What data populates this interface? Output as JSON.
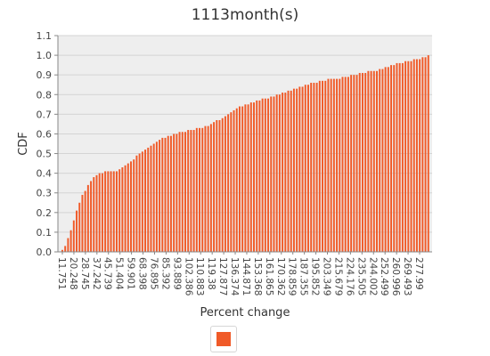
{
  "chart_data": {
    "type": "bar",
    "title": "1113month(s)",
    "xlabel": "Percent change",
    "ylabel": "CDF",
    "ylim": [
      0,
      1.1
    ],
    "yticks": [
      "0.0",
      "0.1",
      "0.2",
      "0.3",
      "0.4",
      "0.5",
      "0.6",
      "0.7",
      "0.8",
      "0.9",
      "1.0",
      "1.1"
    ],
    "grid": true,
    "legend": "bottom-center",
    "bar_color": "#f05a28",
    "plot_background": "#eeeeee",
    "tick_labels": [
      "11.751",
      "20.248",
      "28.745",
      "37.242",
      "45.739",
      "51.404",
      "59.901",
      "68.398",
      "76.895",
      "85.392",
      "93.889",
      "102.386",
      "110.883",
      "119.38",
      "127.877",
      "136.374",
      "144.871",
      "153.368",
      "161.865",
      "170.362",
      "178.859",
      "187.355",
      "195.852",
      "203.349",
      "215.679",
      "224.176",
      "235.505",
      "244.002",
      "252.499",
      "260.996",
      "269.493",
      "277.99"
    ],
    "categories_count": 129,
    "series": [
      {
        "name": "",
        "values": [
          0.01,
          0.03,
          0.07,
          0.11,
          0.16,
          0.21,
          0.25,
          0.29,
          0.31,
          0.34,
          0.36,
          0.38,
          0.39,
          0.4,
          0.4,
          0.41,
          0.41,
          0.41,
          0.41,
          0.41,
          0.42,
          0.43,
          0.44,
          0.45,
          0.46,
          0.47,
          0.49,
          0.5,
          0.51,
          0.52,
          0.53,
          0.54,
          0.55,
          0.56,
          0.57,
          0.58,
          0.58,
          0.59,
          0.59,
          0.6,
          0.6,
          0.61,
          0.61,
          0.61,
          0.62,
          0.62,
          0.62,
          0.63,
          0.63,
          0.63,
          0.64,
          0.64,
          0.65,
          0.66,
          0.67,
          0.67,
          0.68,
          0.69,
          0.7,
          0.71,
          0.72,
          0.73,
          0.74,
          0.74,
          0.75,
          0.75,
          0.76,
          0.76,
          0.77,
          0.77,
          0.78,
          0.78,
          0.78,
          0.79,
          0.79,
          0.8,
          0.8,
          0.81,
          0.81,
          0.82,
          0.82,
          0.83,
          0.83,
          0.84,
          0.84,
          0.85,
          0.85,
          0.86,
          0.86,
          0.86,
          0.87,
          0.87,
          0.87,
          0.88,
          0.88,
          0.88,
          0.88,
          0.88,
          0.89,
          0.89,
          0.89,
          0.9,
          0.9,
          0.9,
          0.91,
          0.91,
          0.91,
          0.92,
          0.92,
          0.92,
          0.92,
          0.93,
          0.93,
          0.94,
          0.94,
          0.95,
          0.95,
          0.96,
          0.96,
          0.96,
          0.97,
          0.97,
          0.97,
          0.98,
          0.98,
          0.98,
          0.99,
          0.99,
          1.0
        ]
      }
    ]
  }
}
